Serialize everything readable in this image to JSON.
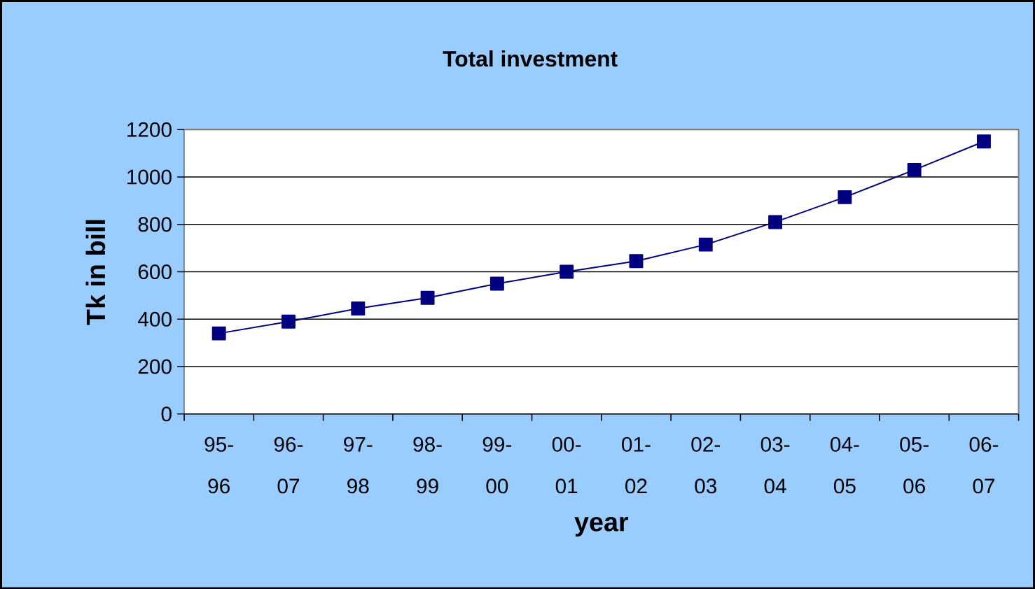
{
  "chart_data": {
    "type": "line",
    "title": "**Total investment**",
    "xlabel": "**year**",
    "ylabel": "**Tk in bill**",
    "categories": [
      "95-96",
      "96-07",
      "97-98",
      "98-99",
      "99-00",
      "00-01",
      "01-02",
      "02-03",
      "03-04",
      "04-05",
      "05-06",
      "06-07"
    ],
    "series": [
      {
        "color": "#000080",
        "values": [
          340,
          390,
          445,
          490,
          550,
          600,
          645,
          715,
          810,
          915,
          1030,
          1150
        ]
      }
    ],
    "ylim": [
      0,
      1200
    ],
    "yticks": [
      0,
      200,
      400,
      600,
      800,
      1000,
      1200
    ],
    "grid": "y",
    "marker": "square",
    "line_style": "solid",
    "legend": false
  }
}
